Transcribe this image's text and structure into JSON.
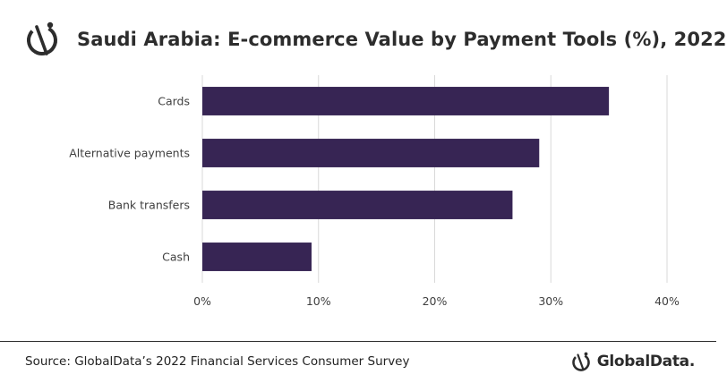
{
  "header": {
    "title": "Saudi Arabia: E-commerce Value by Payment Tools (%), 2022",
    "logo_icon": "globaldata-mark-icon"
  },
  "footer": {
    "source": "Source: GlobalData’s 2022 Financial Services Consumer Survey",
    "brand_name": "GlobalData."
  },
  "colors": {
    "bar": "#372554",
    "grid": "#d9d9d9",
    "text": "#404040"
  },
  "chart_data": {
    "type": "bar",
    "orientation": "horizontal",
    "categories": [
      "Cards",
      "Alternative payments",
      "Bank transfers",
      "Cash"
    ],
    "values": [
      35.0,
      29.0,
      26.7,
      9.4
    ],
    "xlim": [
      0,
      40
    ],
    "xticks": [
      "0%",
      "10%",
      "20%",
      "30%",
      "40%"
    ],
    "grid": true,
    "legend": "none"
  }
}
